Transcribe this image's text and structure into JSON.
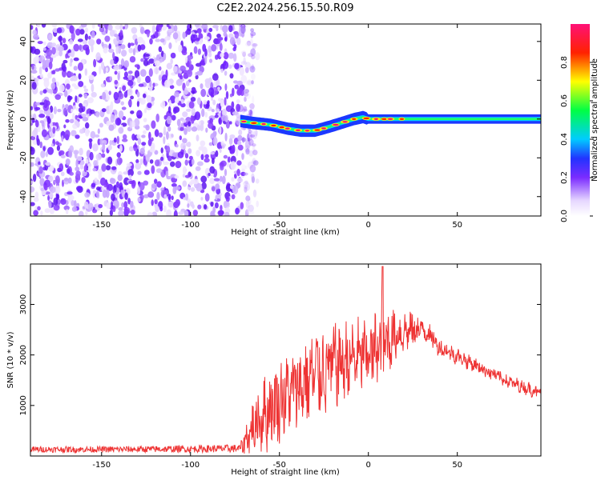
{
  "figure": {
    "title": "C2E2.2024.256.15.50.R09"
  },
  "colors": {
    "snr_line": "#ee3333",
    "background_noise": "#7b2cff",
    "frame": "#000000"
  },
  "chart_data": [
    {
      "type": "heatmap",
      "title": "",
      "xlabel": "Height of straight line (km)",
      "ylabel": "Frequency (Hz)",
      "xlim": [
        -190,
        97
      ],
      "ylim": [
        -50,
        49
      ],
      "xticks": [
        -150,
        -100,
        -50,
        0,
        50
      ],
      "yticks": [
        -40,
        -20,
        0,
        20,
        40
      ],
      "noise_region_x": [
        -190,
        -65
      ],
      "ridge": {
        "description_free_values": true,
        "x": [
          -72,
          -65,
          -55,
          -45,
          -38,
          -30,
          -22,
          -15,
          -8,
          -3,
          0,
          5,
          15,
          25,
          40,
          60,
          80,
          97
        ],
        "y": [
          -1,
          -2,
          -3,
          -5,
          -6,
          -6,
          -4,
          -2,
          0,
          1,
          0,
          0,
          0,
          0,
          0,
          0,
          0,
          0
        ]
      },
      "colorbar": {
        "label": "Normalized spectral amplitude",
        "range": [
          0,
          1
        ],
        "ticks": [
          0.0,
          0.2,
          0.4,
          0.6,
          0.8
        ],
        "tick_labels": [
          "0.0",
          "0.2",
          "0.4",
          "0.6",
          "0.8"
        ]
      }
    },
    {
      "type": "line",
      "title": "",
      "xlabel": "Height of straight line (km)",
      "ylabel": "SNR (10 * v/v)",
      "xlim": [
        -190,
        97
      ],
      "ylim": [
        0,
        3800
      ],
      "xticks": [
        -150,
        -100,
        -50,
        0,
        50
      ],
      "yticks": [
        1000,
        2000,
        3000
      ],
      "envelope": {
        "x": [
          -190,
          -150,
          -100,
          -72,
          -66,
          -60,
          -50,
          -40,
          -30,
          -20,
          -10,
          0,
          8,
          15,
          25,
          32,
          40,
          60,
          80,
          97
        ],
        "mean": [
          130,
          130,
          140,
          150,
          500,
          800,
          1100,
          1350,
          1600,
          1800,
          1900,
          2000,
          2200,
          2400,
          2500,
          2500,
          2150,
          1800,
          1450,
          1250
        ],
        "amp": [
          60,
          60,
          70,
          80,
          400,
          600,
          700,
          700,
          750,
          700,
          650,
          600,
          700,
          400,
          300,
          220,
          150,
          120,
          110,
          110
        ]
      },
      "peak": {
        "x": 8,
        "y": 3750
      }
    }
  ]
}
